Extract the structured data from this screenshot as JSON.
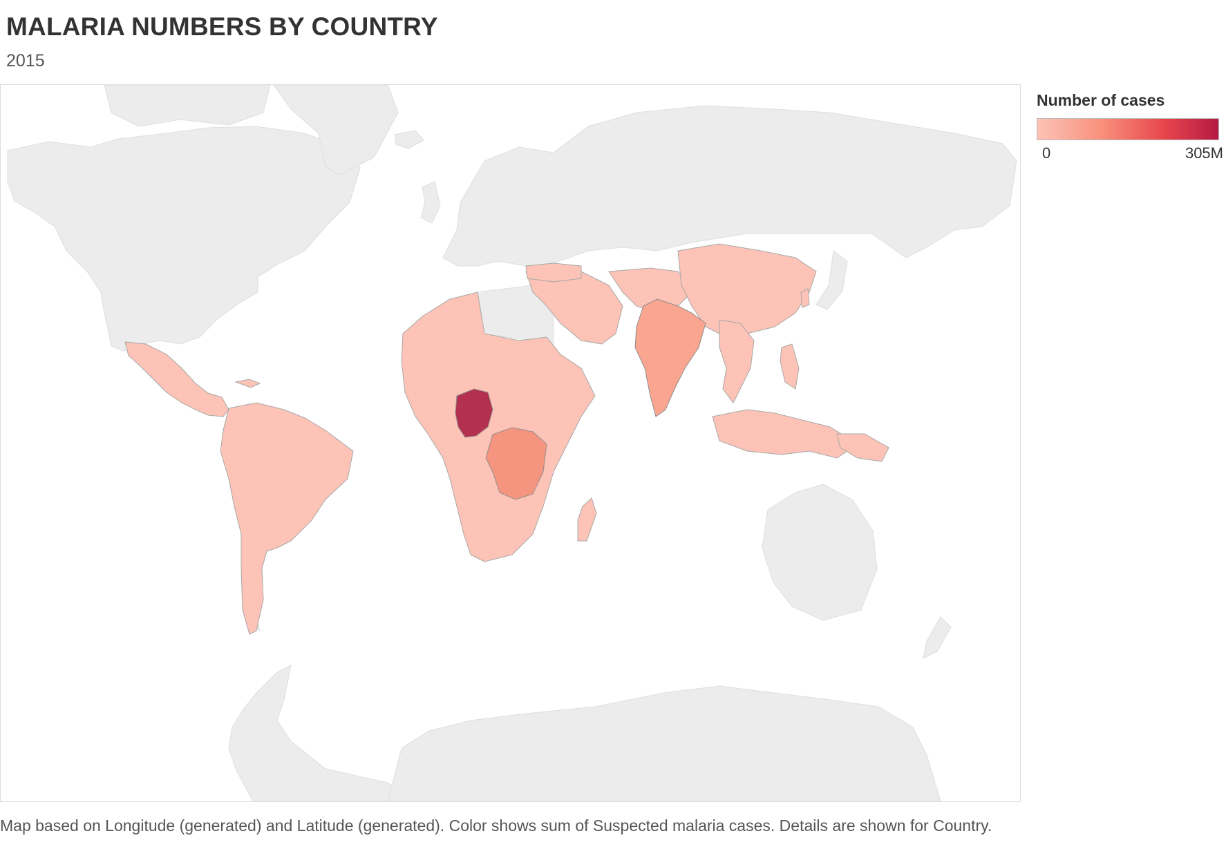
{
  "header": {
    "title": "MALARIA NUMBERS BY COUNTRY",
    "subtitle": "2015"
  },
  "legend": {
    "title": "Number of cases",
    "min_label": "0",
    "max_label": "305M",
    "min_value": 0,
    "max_value": 305000000,
    "colors": [
      "#fcc3b6",
      "#f8917d",
      "#e8464c",
      "#b51a43"
    ]
  },
  "caption": "Map based on Longitude (generated) and Latitude (generated).  Color shows sum of Suspected malaria cases.  Details are shown for Country.",
  "map": {
    "base_land_color": "#ececec",
    "border_color": "#a8a8a8",
    "endemic_color": "#fcc3b6",
    "highlighted_countries": [
      {
        "name": "Nigeria",
        "color": "#b4304f"
      },
      {
        "name": "Democratic Republic of the Congo",
        "color": "#f6957f"
      },
      {
        "name": "India",
        "color": "#f9a58f"
      }
    ]
  }
}
